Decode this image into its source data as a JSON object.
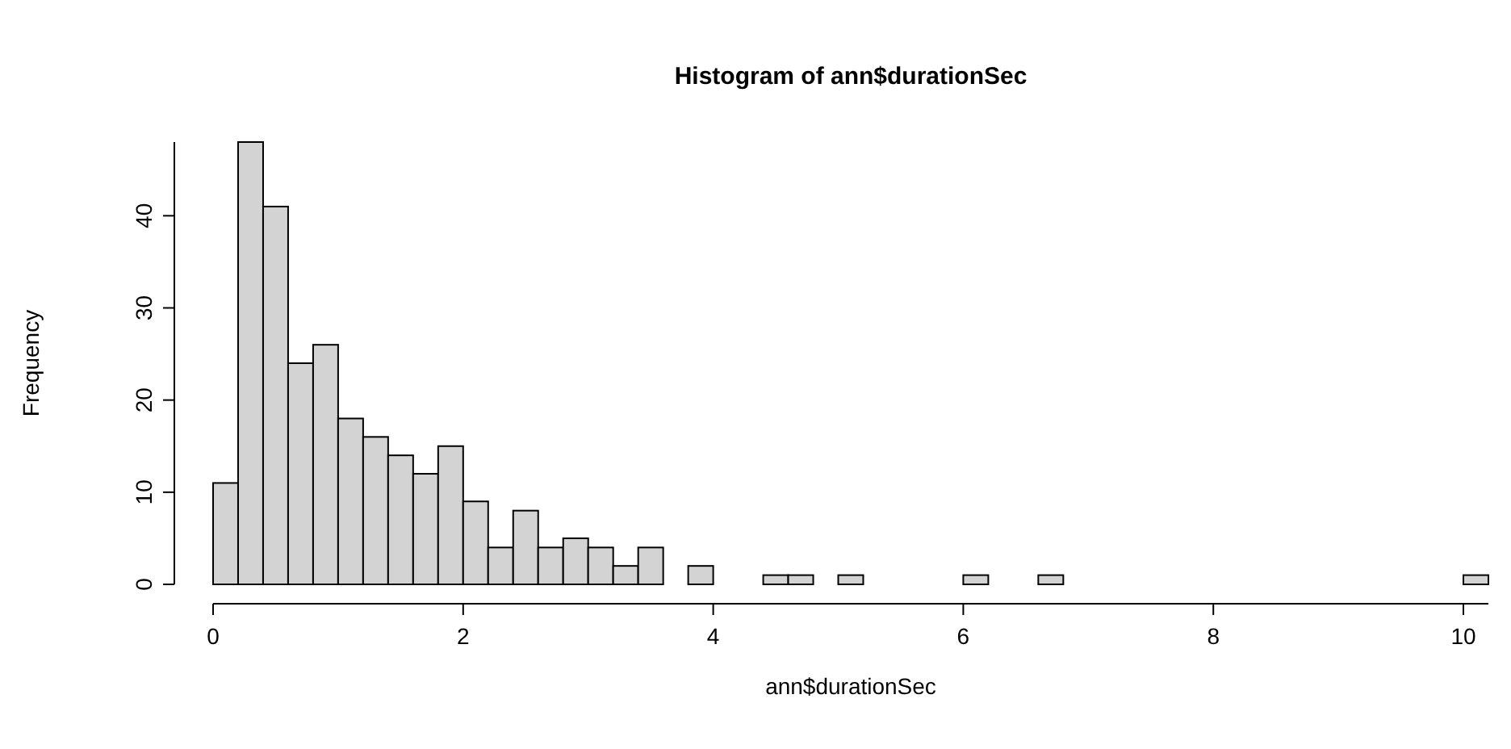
{
  "chart_data": {
    "type": "histogram",
    "title": "Histogram of ann$durationSec",
    "xlabel": "ann$durationSec",
    "ylabel": "Frequency",
    "bins": [
      0,
      0.2,
      0.4,
      0.6,
      0.8,
      1,
      1.2,
      1.4,
      1.6,
      1.8,
      2,
      2.2,
      2.4,
      2.6,
      2.8,
      3,
      3.2,
      3.4,
      3.6,
      3.8,
      4,
      4.2,
      4.4,
      4.6,
      4.8,
      5,
      5.2,
      5.4,
      5.6,
      5.8,
      6,
      6.2,
      6.4,
      6.6,
      6.8,
      7,
      7.2,
      7.4,
      7.6,
      7.8,
      8,
      8.2,
      8.4,
      8.6,
      8.8,
      9,
      9.2,
      9.4,
      9.6,
      9.8,
      10,
      10.2
    ],
    "values": [
      11,
      48,
      41,
      24,
      26,
      18,
      16,
      14,
      12,
      15,
      9,
      4,
      8,
      4,
      5,
      4,
      2,
      4,
      0,
      2,
      0,
      0,
      1,
      1,
      0,
      1,
      0,
      0,
      0,
      0,
      1,
      0,
      0,
      1,
      0,
      0,
      0,
      0,
      0,
      0,
      0,
      0,
      0,
      0,
      0,
      0,
      0,
      0,
      0,
      0,
      1
    ],
    "color": "#d3d3d3",
    "xlim": [
      0,
      10.2
    ],
    "ylim": [
      0,
      48
    ],
    "xticks": [
      0,
      2,
      4,
      6,
      8,
      10
    ],
    "yticks": [
      0,
      10,
      20,
      30,
      40
    ],
    "grid": false
  }
}
